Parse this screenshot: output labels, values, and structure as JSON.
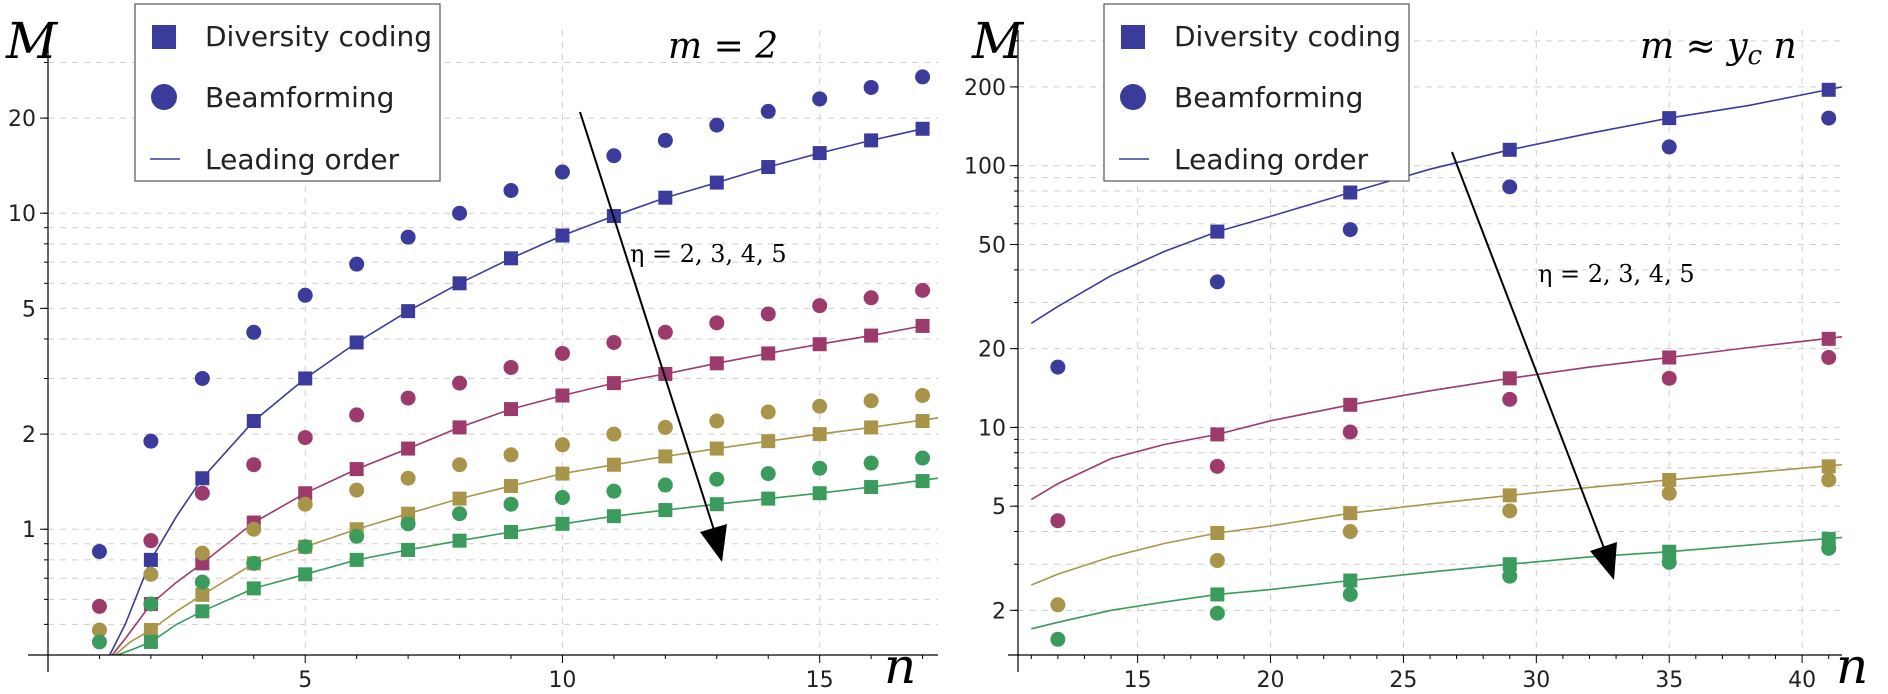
{
  "colors": {
    "eta2": "#3b3b9c",
    "eta3": "#9c3a6c",
    "eta4": "#a8954a",
    "eta5": "#3a9b5c"
  },
  "legend": {
    "items": [
      {
        "label": "Diversity coding",
        "marker": "square"
      },
      {
        "label": "Beamforming",
        "marker": "circle"
      },
      {
        "label": "Leading order",
        "marker": "line"
      }
    ]
  },
  "chart_data": [
    {
      "type": "scatter",
      "ylog": true,
      "ylabel": "M",
      "xlabel": "n",
      "parameter_label": "m = 2",
      "annotation": "η = 2, 3, 4, 5",
      "xlim": [
        0,
        17.3
      ],
      "ylim": [
        0.4,
        38
      ],
      "xticks": [
        5,
        10,
        15
      ],
      "yticks": [
        1,
        2,
        5,
        10,
        20
      ],
      "series": [
        {
          "eta": 2,
          "color_key": "eta2",
          "diversity_x": [
            2,
            3,
            4,
            5,
            6,
            7,
            8,
            9,
            10,
            11,
            12,
            13,
            14,
            15,
            16,
            17
          ],
          "diversity_y": [
            0.8,
            1.45,
            2.2,
            3.0,
            3.9,
            4.9,
            6.0,
            7.2,
            8.5,
            9.8,
            11.2,
            12.5,
            14.0,
            15.5,
            17.0,
            18.5
          ],
          "beam_x": [
            1,
            2,
            3,
            4,
            5,
            6,
            7,
            8,
            9,
            10,
            11,
            12,
            13,
            14,
            15,
            16,
            17
          ],
          "beam_y": [
            0.85,
            1.9,
            3.0,
            4.2,
            5.5,
            6.9,
            8.4,
            10.0,
            11.8,
            13.5,
            15.2,
            17.0,
            19.0,
            21.0,
            23.0,
            25.0,
            27.0
          ],
          "lead_x": [
            1.2,
            1.5,
            2,
            2.5,
            3,
            4,
            5,
            6,
            7,
            8,
            9,
            10,
            11,
            12,
            13,
            14,
            15,
            16,
            17
          ],
          "lead_y": [
            0.4,
            0.5,
            0.8,
            1.1,
            1.45,
            2.2,
            3.0,
            3.9,
            4.9,
            6.0,
            7.2,
            8.5,
            9.8,
            11.2,
            12.5,
            14.0,
            15.5,
            17.0,
            18.5
          ]
        },
        {
          "eta": 3,
          "color_key": "eta3",
          "diversity_x": [
            2,
            3,
            4,
            5,
            6,
            7,
            8,
            9,
            10,
            11,
            12,
            13,
            14,
            15,
            16,
            17
          ],
          "diversity_y": [
            0.58,
            0.78,
            1.05,
            1.3,
            1.55,
            1.8,
            2.1,
            2.4,
            2.65,
            2.9,
            3.1,
            3.35,
            3.6,
            3.85,
            4.1,
            4.4
          ],
          "beam_x": [
            1,
            2,
            3,
            4,
            5,
            6,
            7,
            8,
            9,
            10,
            11,
            12,
            13,
            14,
            15,
            16,
            17
          ],
          "beam_y": [
            0.57,
            0.92,
            1.3,
            1.6,
            1.95,
            2.3,
            2.6,
            2.9,
            3.25,
            3.6,
            3.9,
            4.2,
            4.5,
            4.8,
            5.1,
            5.4,
            5.7
          ],
          "lead_x": [
            1.25,
            1.5,
            2,
            2.5,
            3,
            4,
            5,
            6,
            7,
            8,
            9,
            10,
            11,
            12,
            13,
            14,
            15,
            16,
            17
          ],
          "lead_y": [
            0.4,
            0.45,
            0.58,
            0.68,
            0.78,
            1.05,
            1.3,
            1.55,
            1.8,
            2.1,
            2.4,
            2.65,
            2.9,
            3.1,
            3.35,
            3.6,
            3.85,
            4.1,
            4.4
          ]
        },
        {
          "eta": 4,
          "color_key": "eta4",
          "diversity_x": [
            2,
            3,
            4,
            5,
            6,
            7,
            8,
            9,
            10,
            11,
            12,
            13,
            14,
            15,
            16,
            17
          ],
          "diversity_y": [
            0.48,
            0.62,
            0.78,
            0.88,
            1.0,
            1.12,
            1.25,
            1.37,
            1.5,
            1.6,
            1.7,
            1.8,
            1.9,
            2.0,
            2.1,
            2.2
          ],
          "beam_x": [
            1,
            2,
            3,
            4,
            5,
            6,
            7,
            8,
            9,
            10,
            11,
            12,
            13,
            14,
            15,
            16,
            17
          ],
          "beam_y": [
            0.48,
            0.72,
            0.84,
            1.0,
            1.2,
            1.33,
            1.45,
            1.6,
            1.72,
            1.85,
            2.0,
            2.1,
            2.2,
            2.35,
            2.45,
            2.55,
            2.65
          ],
          "lead_x": [
            1.3,
            1.6,
            2,
            2.5,
            3,
            4,
            5,
            6,
            7,
            8,
            9,
            10,
            11,
            12,
            13,
            14,
            15,
            16,
            17.3
          ],
          "lead_y": [
            0.4,
            0.44,
            0.48,
            0.55,
            0.62,
            0.78,
            0.88,
            1.0,
            1.12,
            1.25,
            1.37,
            1.5,
            1.6,
            1.7,
            1.8,
            1.9,
            2.0,
            2.1,
            2.25
          ]
        },
        {
          "eta": 5,
          "color_key": "eta5",
          "diversity_x": [
            2,
            3,
            4,
            5,
            6,
            7,
            8,
            9,
            10,
            11,
            12,
            13,
            14,
            15,
            16,
            17
          ],
          "diversity_y": [
            0.44,
            0.55,
            0.65,
            0.72,
            0.8,
            0.86,
            0.92,
            0.98,
            1.04,
            1.1,
            1.15,
            1.2,
            1.25,
            1.3,
            1.36,
            1.42
          ],
          "beam_x": [
            1,
            2,
            3,
            4,
            5,
            6,
            7,
            8,
            9,
            10,
            11,
            12,
            13,
            14,
            15,
            16,
            17
          ],
          "beam_y": [
            0.44,
            0.58,
            0.68,
            0.78,
            0.88,
            0.95,
            1.04,
            1.12,
            1.2,
            1.26,
            1.32,
            1.38,
            1.44,
            1.5,
            1.56,
            1.62,
            1.68
          ],
          "lead_x": [
            1.35,
            1.7,
            2,
            2.5,
            3,
            4,
            5,
            6,
            7,
            8,
            9,
            10,
            11,
            12,
            13,
            14,
            15,
            16,
            17.3
          ],
          "lead_y": [
            0.4,
            0.42,
            0.44,
            0.5,
            0.55,
            0.65,
            0.72,
            0.8,
            0.86,
            0.92,
            0.98,
            1.04,
            1.1,
            1.15,
            1.2,
            1.25,
            1.3,
            1.36,
            1.45
          ]
        }
      ]
    },
    {
      "type": "scatter",
      "ylog": true,
      "ylabel": "M",
      "xlabel": "n",
      "parameter_label": "m ≈ y_c n",
      "annotation": "η = 2, 3, 4, 5",
      "xlim": [
        10.5,
        41.5
      ],
      "ylim": [
        1.35,
        330
      ],
      "xticks": [
        15,
        20,
        25,
        30,
        35,
        40
      ],
      "yticks": [
        2,
        5,
        10,
        20,
        50,
        100,
        200
      ],
      "series": [
        {
          "eta": 2,
          "color_key": "eta2",
          "diversity_x": [
            18,
            23,
            29,
            35,
            41
          ],
          "diversity_y": [
            56,
            79,
            115,
            152,
            195
          ],
          "beam_x": [
            12,
            18,
            23,
            29,
            35,
            41
          ],
          "beam_y": [
            17,
            36,
            57,
            83,
            118,
            152
          ],
          "lead_x": [
            11,
            12,
            14,
            16,
            18,
            20,
            23,
            26,
            29,
            32,
            35,
            38,
            41.5
          ],
          "lead_y": [
            25,
            29,
            38,
            47,
            56,
            64,
            79,
            97,
            115,
            133,
            152,
            170,
            200
          ]
        },
        {
          "eta": 3,
          "color_key": "eta3",
          "diversity_x": [
            18,
            23,
            29,
            35,
            41
          ],
          "diversity_y": [
            9.4,
            12.2,
            15.4,
            18.5,
            21.8
          ],
          "beam_x": [
            12,
            18,
            23,
            29,
            35,
            41
          ],
          "beam_y": [
            4.4,
            7.1,
            9.6,
            12.8,
            15.4,
            18.5
          ],
          "lead_x": [
            11,
            12,
            14,
            16,
            18,
            20,
            23,
            26,
            29,
            32,
            35,
            38,
            41.5
          ],
          "lead_y": [
            5.3,
            6.1,
            7.6,
            8.6,
            9.4,
            10.6,
            12.2,
            13.8,
            15.4,
            17.0,
            18.5,
            20.2,
            22.2
          ]
        },
        {
          "eta": 4,
          "color_key": "eta4",
          "diversity_x": [
            18,
            23,
            29,
            35,
            41
          ],
          "diversity_y": [
            3.95,
            4.7,
            5.5,
            6.3,
            7.1
          ],
          "beam_x": [
            12,
            18,
            23,
            29,
            35,
            41
          ],
          "beam_y": [
            2.1,
            3.1,
            4.0,
            4.8,
            5.6,
            6.3
          ],
          "lead_x": [
            11,
            12,
            14,
            16,
            18,
            20,
            23,
            26,
            29,
            32,
            35,
            38,
            41.5
          ],
          "lead_y": [
            2.5,
            2.75,
            3.2,
            3.6,
            3.95,
            4.2,
            4.7,
            5.1,
            5.5,
            5.9,
            6.3,
            6.7,
            7.2
          ]
        },
        {
          "eta": 5,
          "color_key": "eta5",
          "diversity_x": [
            18,
            23,
            29,
            35,
            41
          ],
          "diversity_y": [
            2.3,
            2.6,
            3.0,
            3.35,
            3.75
          ],
          "beam_x": [
            12,
            18,
            23,
            29,
            35,
            41
          ],
          "beam_y": [
            1.55,
            1.95,
            2.3,
            2.7,
            3.05,
            3.45
          ],
          "lead_x": [
            11,
            12,
            14,
            16,
            18,
            20,
            23,
            26,
            29,
            32,
            35,
            38,
            41.5
          ],
          "lead_y": [
            1.7,
            1.8,
            2.0,
            2.15,
            2.3,
            2.4,
            2.6,
            2.8,
            3.0,
            3.2,
            3.35,
            3.55,
            3.8
          ]
        }
      ]
    }
  ]
}
